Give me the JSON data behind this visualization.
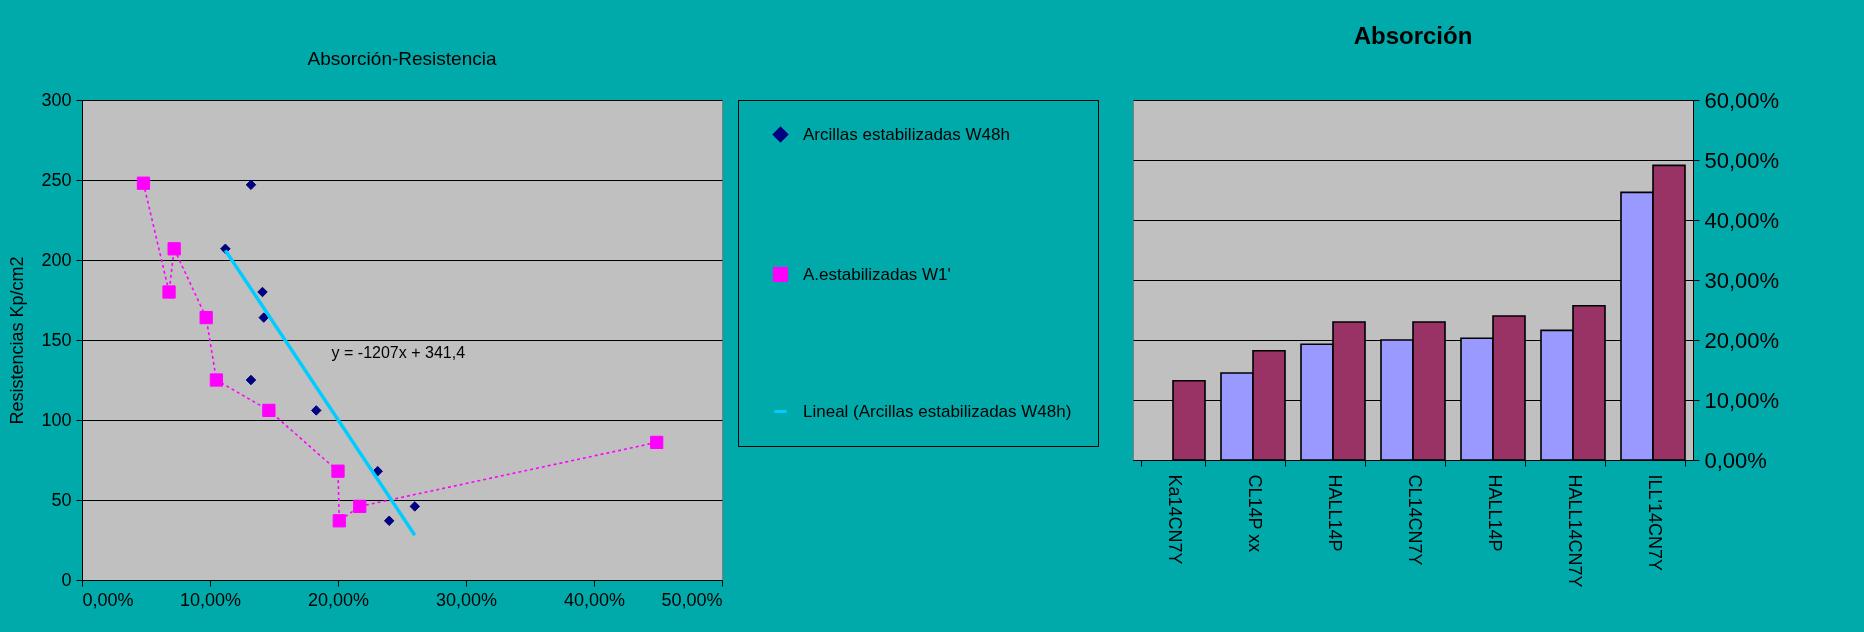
{
  "chart_data": [
    {
      "type": "scatter",
      "title": "Absorción-Resistencia",
      "ylabel": "Resistencias Kp/cm2",
      "xlim": [
        0,
        50
      ],
      "xticks": [
        {
          "value": 0,
          "label": "0,00%"
        },
        {
          "value": 10,
          "label": "10,00%"
        },
        {
          "value": 20,
          "label": "20,00%"
        },
        {
          "value": 30,
          "label": "30,00%"
        },
        {
          "value": 40,
          "label": "40,00%"
        },
        {
          "value": 50,
          "label": "50,00%"
        }
      ],
      "ylim": [
        0,
        300
      ],
      "yticks": [
        0,
        50,
        100,
        150,
        200,
        250,
        300
      ],
      "grid": "y",
      "legend": "right",
      "series": [
        {
          "name": "Arcillas estabilizadas W48h",
          "type": "scatter",
          "color": "#000080",
          "marker": "diamond",
          "x": [
            13.2,
            11.2,
            14.1,
            14.2,
            13.2,
            18.3,
            23.1,
            24.0,
            26.0
          ],
          "values": [
            247,
            207,
            180,
            164,
            125,
            106,
            68,
            37,
            46
          ]
        },
        {
          "name": "A.estabilizadas W1'",
          "type": "line",
          "color": "#ff00ff",
          "marker": "square",
          "line_style": "dotted",
          "x": [
            4.8,
            6.8,
            7.2,
            9.7,
            10.5,
            14.6,
            20.0,
            20.1,
            21.7,
            44.9
          ],
          "values": [
            248,
            180,
            207,
            164,
            125,
            106,
            68,
            37,
            46,
            86
          ]
        },
        {
          "name": "Lineal (Arcillas estabilizadas W48h)",
          "type": "line",
          "color": "#00ccff",
          "marker": "none",
          "line_style": "solid",
          "x": [
            11.2,
            26.0
          ],
          "values": [
            206,
            28
          ]
        }
      ],
      "annotations": [
        "y = -1207x + 341,4"
      ]
    },
    {
      "type": "bar",
      "title": "Absorción",
      "categories": [
        "Ka14CN7Y",
        "CL14P xx",
        "HALL14P",
        "CL14CN7Y",
        "HALL14P",
        "HALL14CN7Y",
        "ILL'14CN7Y"
      ],
      "series": [
        {
          "color": "#9999ff",
          "axis": "y2",
          "values": [
            null,
            14.5,
            19.3,
            20.0,
            20.3,
            21.6,
            44.6
          ]
        },
        {
          "color": "#993366",
          "axis": "y2",
          "values": [
            13.2,
            18.2,
            23.0,
            23.0,
            24.0,
            25.7,
            49.1
          ]
        }
      ],
      "y2lim": [
        0,
        60
      ],
      "y2ticks": [
        {
          "value": 0,
          "label": "0,00%"
        },
        {
          "value": 10,
          "label": "10,00%"
        },
        {
          "value": 20,
          "label": "20,00%"
        },
        {
          "value": 30,
          "label": "30,00%"
        },
        {
          "value": 40,
          "label": "40,00%"
        },
        {
          "value": 50,
          "label": "50,00%"
        },
        {
          "value": 60,
          "label": "60,00%"
        }
      ],
      "grid": "y",
      "legend": false
    }
  ]
}
